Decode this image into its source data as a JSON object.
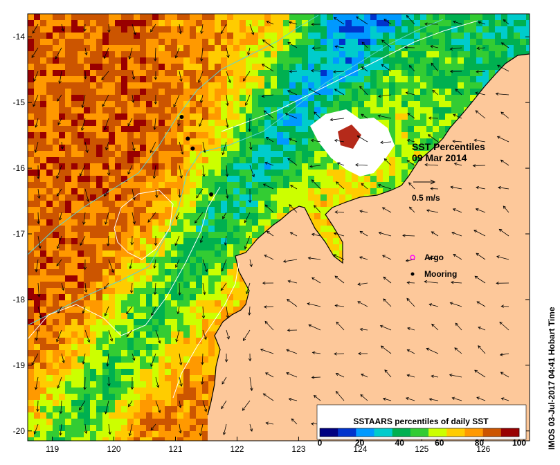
{
  "map": {
    "title": "SST Percentiles",
    "date": "09 Mar 2014",
    "velocity_scale_label": "0.5 m/s",
    "x_ticks": [
      "119",
      "120",
      "121",
      "122",
      "123",
      "124",
      "125",
      "126"
    ],
    "y_ticks": [
      "-14",
      "-15",
      "-16",
      "-17",
      "-18",
      "-19",
      "-20"
    ],
    "x_range": [
      118.6,
      126.75
    ],
    "y_range": [
      -13.65,
      -20.15
    ]
  },
  "legend": {
    "argo_label": "Argo",
    "mooring_label": "Mooring",
    "colorbar_title": "SSTAARS percentiles of daily SST",
    "colorbar_ticks": [
      "0",
      "20",
      "40",
      "60",
      "80",
      "100"
    ],
    "colors": [
      "#000080",
      "#0033cc",
      "#0099ff",
      "#00cccc",
      "#00b050",
      "#33cc33",
      "#ccff00",
      "#ffcc00",
      "#ff9900",
      "#cc5500",
      "#990000"
    ]
  },
  "moorings": [
    {
      "lon": 121.1,
      "lat": -15.22
    },
    {
      "lon": 121.2,
      "lat": -15.55
    },
    {
      "lon": 121.28,
      "lat": -15.7
    },
    {
      "lon": 121.58,
      "lat": -16.4
    }
  ],
  "colors": {
    "land": "#fdc89a",
    "coast": "#000000",
    "contour_white": "#ffffff",
    "contour_cyan": "#5ad6d6"
  },
  "credit": "IMOS 03-Jul-2017 04:41 Hobart Time"
}
